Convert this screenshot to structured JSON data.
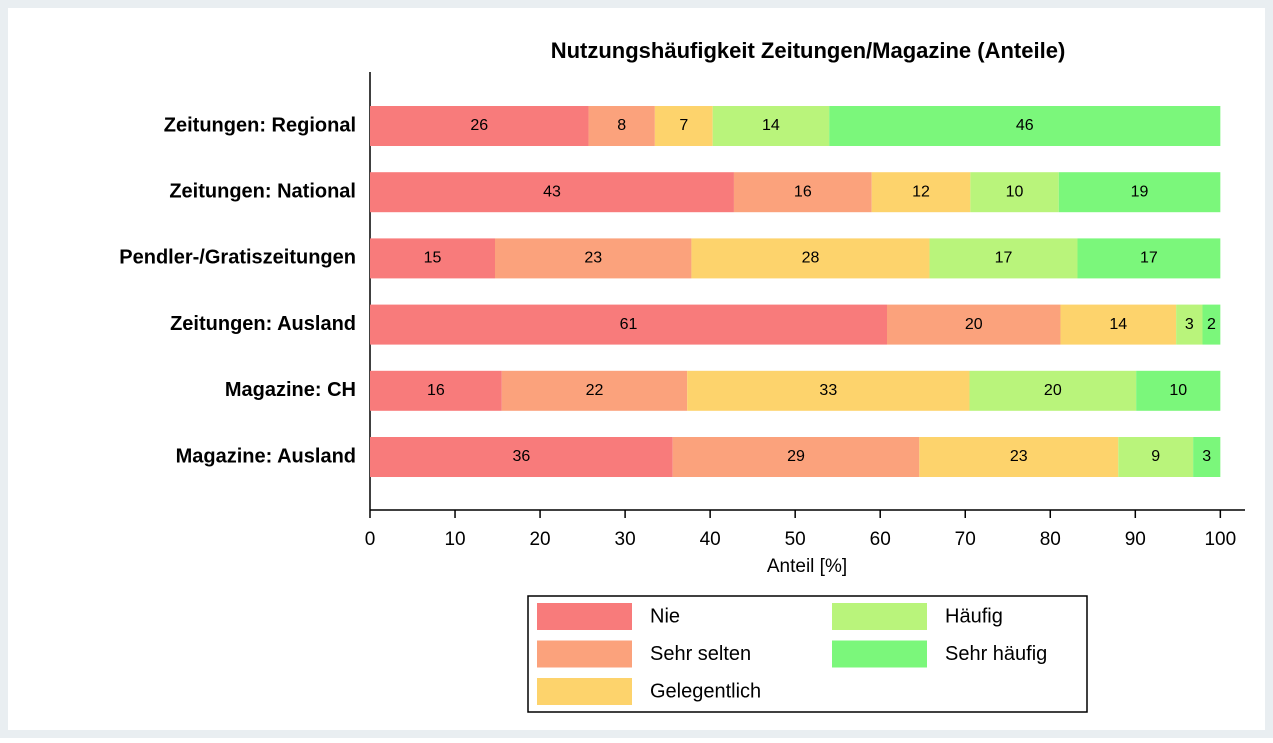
{
  "chart_data": {
    "type": "stacked_barh",
    "title": "Nutzungshäufigkeit Zeitungen/Magazine (Anteile)",
    "xlabel": "Anteil [%]",
    "categories": [
      "Zeitungen: Regional",
      "Zeitungen: National",
      "Pendler-/Gratiszeitungen",
      "Zeitungen: Ausland",
      "Magazine: CH",
      "Magazine: Ausland"
    ],
    "series": [
      {
        "name": "Nie",
        "color": "#f87b7b",
        "values": [
          25.7,
          42.8,
          14.7,
          60.8,
          15.5,
          35.6
        ],
        "value_labels": [
          26,
          43,
          15,
          61,
          16,
          36
        ]
      },
      {
        "name": "Sehr selten",
        "color": "#fba27c",
        "values": [
          7.8,
          16.2,
          23.1,
          20.4,
          21.8,
          29.0
        ],
        "value_labels": [
          8,
          16,
          23,
          20,
          22,
          29
        ]
      },
      {
        "name": "Gelegentlich",
        "color": "#fdd36c",
        "values": [
          6.8,
          11.6,
          28.0,
          13.6,
          33.2,
          23.4
        ],
        "value_labels": [
          7,
          12,
          28,
          14,
          33,
          23
        ]
      },
      {
        "name": "Häufig",
        "color": "#b9f47b",
        "values": [
          13.7,
          10.4,
          17.4,
          3.1,
          19.6,
          8.8
        ],
        "value_labels": [
          14,
          10,
          17,
          3,
          20,
          9
        ]
      },
      {
        "name": "Sehr häufig",
        "color": "#7bf77b",
        "values": [
          46.0,
          19.0,
          16.8,
          2.1,
          9.9,
          3.2
        ],
        "value_labels": [
          46,
          19,
          17,
          2,
          10,
          3
        ]
      }
    ],
    "xlim": [
      0,
      102.9
    ],
    "xticks": [
      0,
      10,
      20,
      30,
      40,
      50,
      60,
      70,
      80,
      90,
      100
    ],
    "legend": "bottom"
  }
}
